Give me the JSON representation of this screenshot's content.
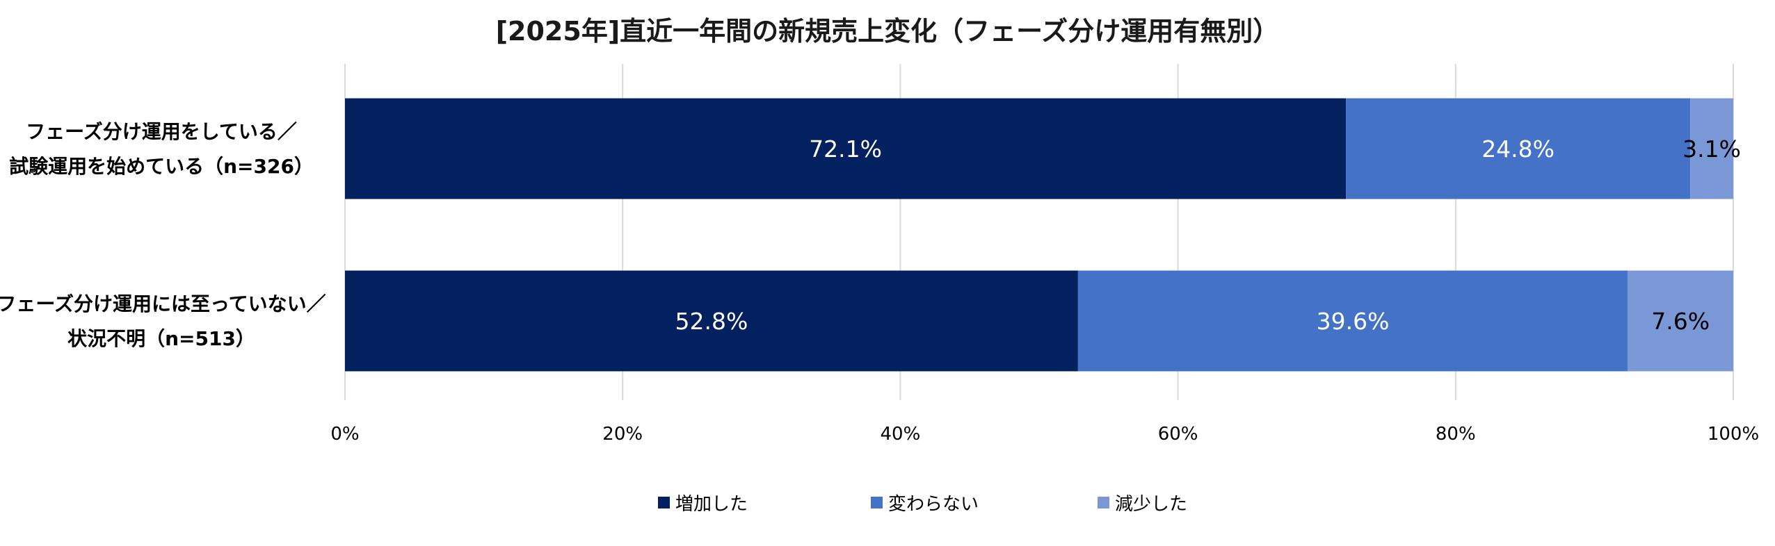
{
  "chart_data": {
    "type": "bar",
    "orientation": "horizontal",
    "stacked": true,
    "title": "[2025年]直近一年間の新規売上変化（フェーズ分け運用有無別）",
    "categories": [
      {
        "lines": [
          "フェーズ分け運用をしている／",
          "試験運用を始めている（n=326）"
        ]
      },
      {
        "lines": [
          "フェーズ分け運用には至っていない／",
          "状況不明（n=513）"
        ]
      }
    ],
    "series": [
      {
        "name": "増加した",
        "color": "#03205F",
        "label_color": "#FFFFFF",
        "values": [
          72.1,
          52.8
        ],
        "labels": [
          "72.1%",
          "52.8%"
        ]
      },
      {
        "name": "変わらない",
        "color": "#4472C6",
        "label_color": "#FFFFFF",
        "values": [
          24.8,
          39.6
        ],
        "labels": [
          "24.8%",
          "39.6%"
        ]
      },
      {
        "name": "減少した",
        "color": "#7B98D6",
        "label_color": "#000000",
        "values": [
          3.1,
          7.6
        ],
        "labels": [
          "3.1%",
          "7.6%"
        ]
      }
    ],
    "xlim": [
      0,
      100
    ],
    "xticks": [
      0,
      20,
      40,
      60,
      80,
      100
    ],
    "xtick_labels": [
      "0%",
      "20%",
      "40%",
      "60%",
      "80%",
      "100%"
    ],
    "grid": true,
    "legend_position": "bottom"
  }
}
